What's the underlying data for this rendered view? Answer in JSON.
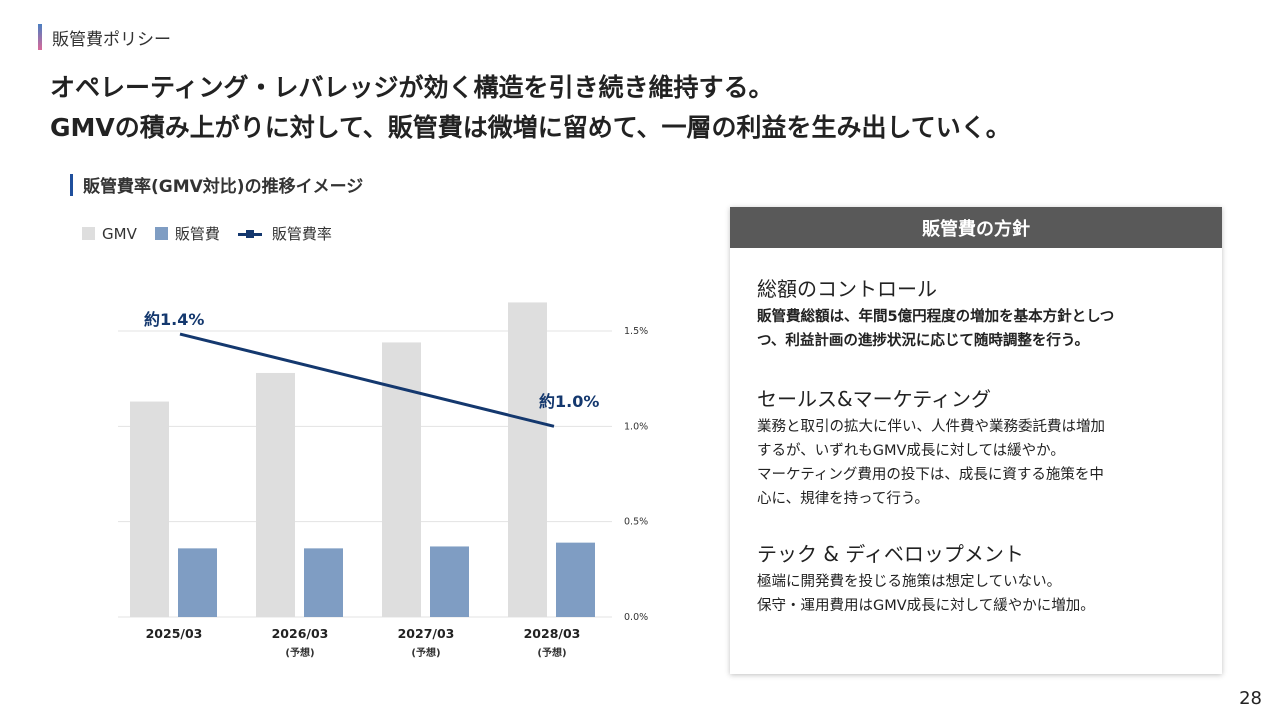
{
  "header": {
    "section": "販管費ポリシー",
    "headline_line1": "オペレーティング・レバレッジが効く構造を引き続き維持する。",
    "headline_line2": "GMVの積み上がりに対して、販管費は微増に留めて、一層の利益を生み出していく。"
  },
  "chart_title": "販管費率(GMV対比)の推移イメージ",
  "legend": {
    "gmv": "GMV",
    "sga": "販管費",
    "ratio": "販管費率"
  },
  "chart_data": {
    "type": "bar",
    "categories": [
      "2025/03",
      "2026/03",
      "2027/03",
      "2028/03"
    ],
    "category_notes": [
      "",
      "(予想)",
      "(予想)",
      "(予想)"
    ],
    "series": [
      {
        "name": "GMV",
        "type": "bar",
        "color": "#dedede",
        "values": [
          1.13,
          1.28,
          1.44,
          1.65
        ]
      },
      {
        "name": "販管費",
        "type": "bar",
        "color": "#7f9dc3",
        "values": [
          0.36,
          0.36,
          0.37,
          0.39
        ]
      },
      {
        "name": "販管費率",
        "type": "line",
        "color": "#14386e",
        "axis": "right",
        "values": [
          1.4,
          null,
          null,
          1.0
        ]
      }
    ],
    "right_axis": {
      "ticks": [
        "0.0%",
        "0.5%",
        "1.0%",
        "1.5%"
      ],
      "range": [
        0,
        1.5
      ]
    },
    "annotations": [
      "約1.4%",
      "約1.0%"
    ],
    "grid": true
  },
  "panel": {
    "title": "販管費の方針",
    "policies": [
      {
        "heading": "総額のコントロール",
        "lines": [
          "販管費総額は、年間5億円程度の増加を基本方針としつ",
          "つ、利益計画の進捗状況に応じて随時調整を行う。"
        ]
      },
      {
        "heading": "セールス&マーケティング",
        "lines": [
          "業務と取引の拡大に伴い、人件費や業務委託費は増加",
          "するが、いずれもGMV成長に対しては緩やか。",
          "マーケティング費用の投下は、成長に資する施策を中",
          "心に、規律を持って行う。"
        ]
      },
      {
        "heading": "テック & ディベロップメント",
        "lines": [
          "極端に開発費を投じる施策は想定していない。",
          "保守・運用費用はGMV成長に対して緩やかに増加。"
        ]
      }
    ]
  },
  "page_number": "28"
}
